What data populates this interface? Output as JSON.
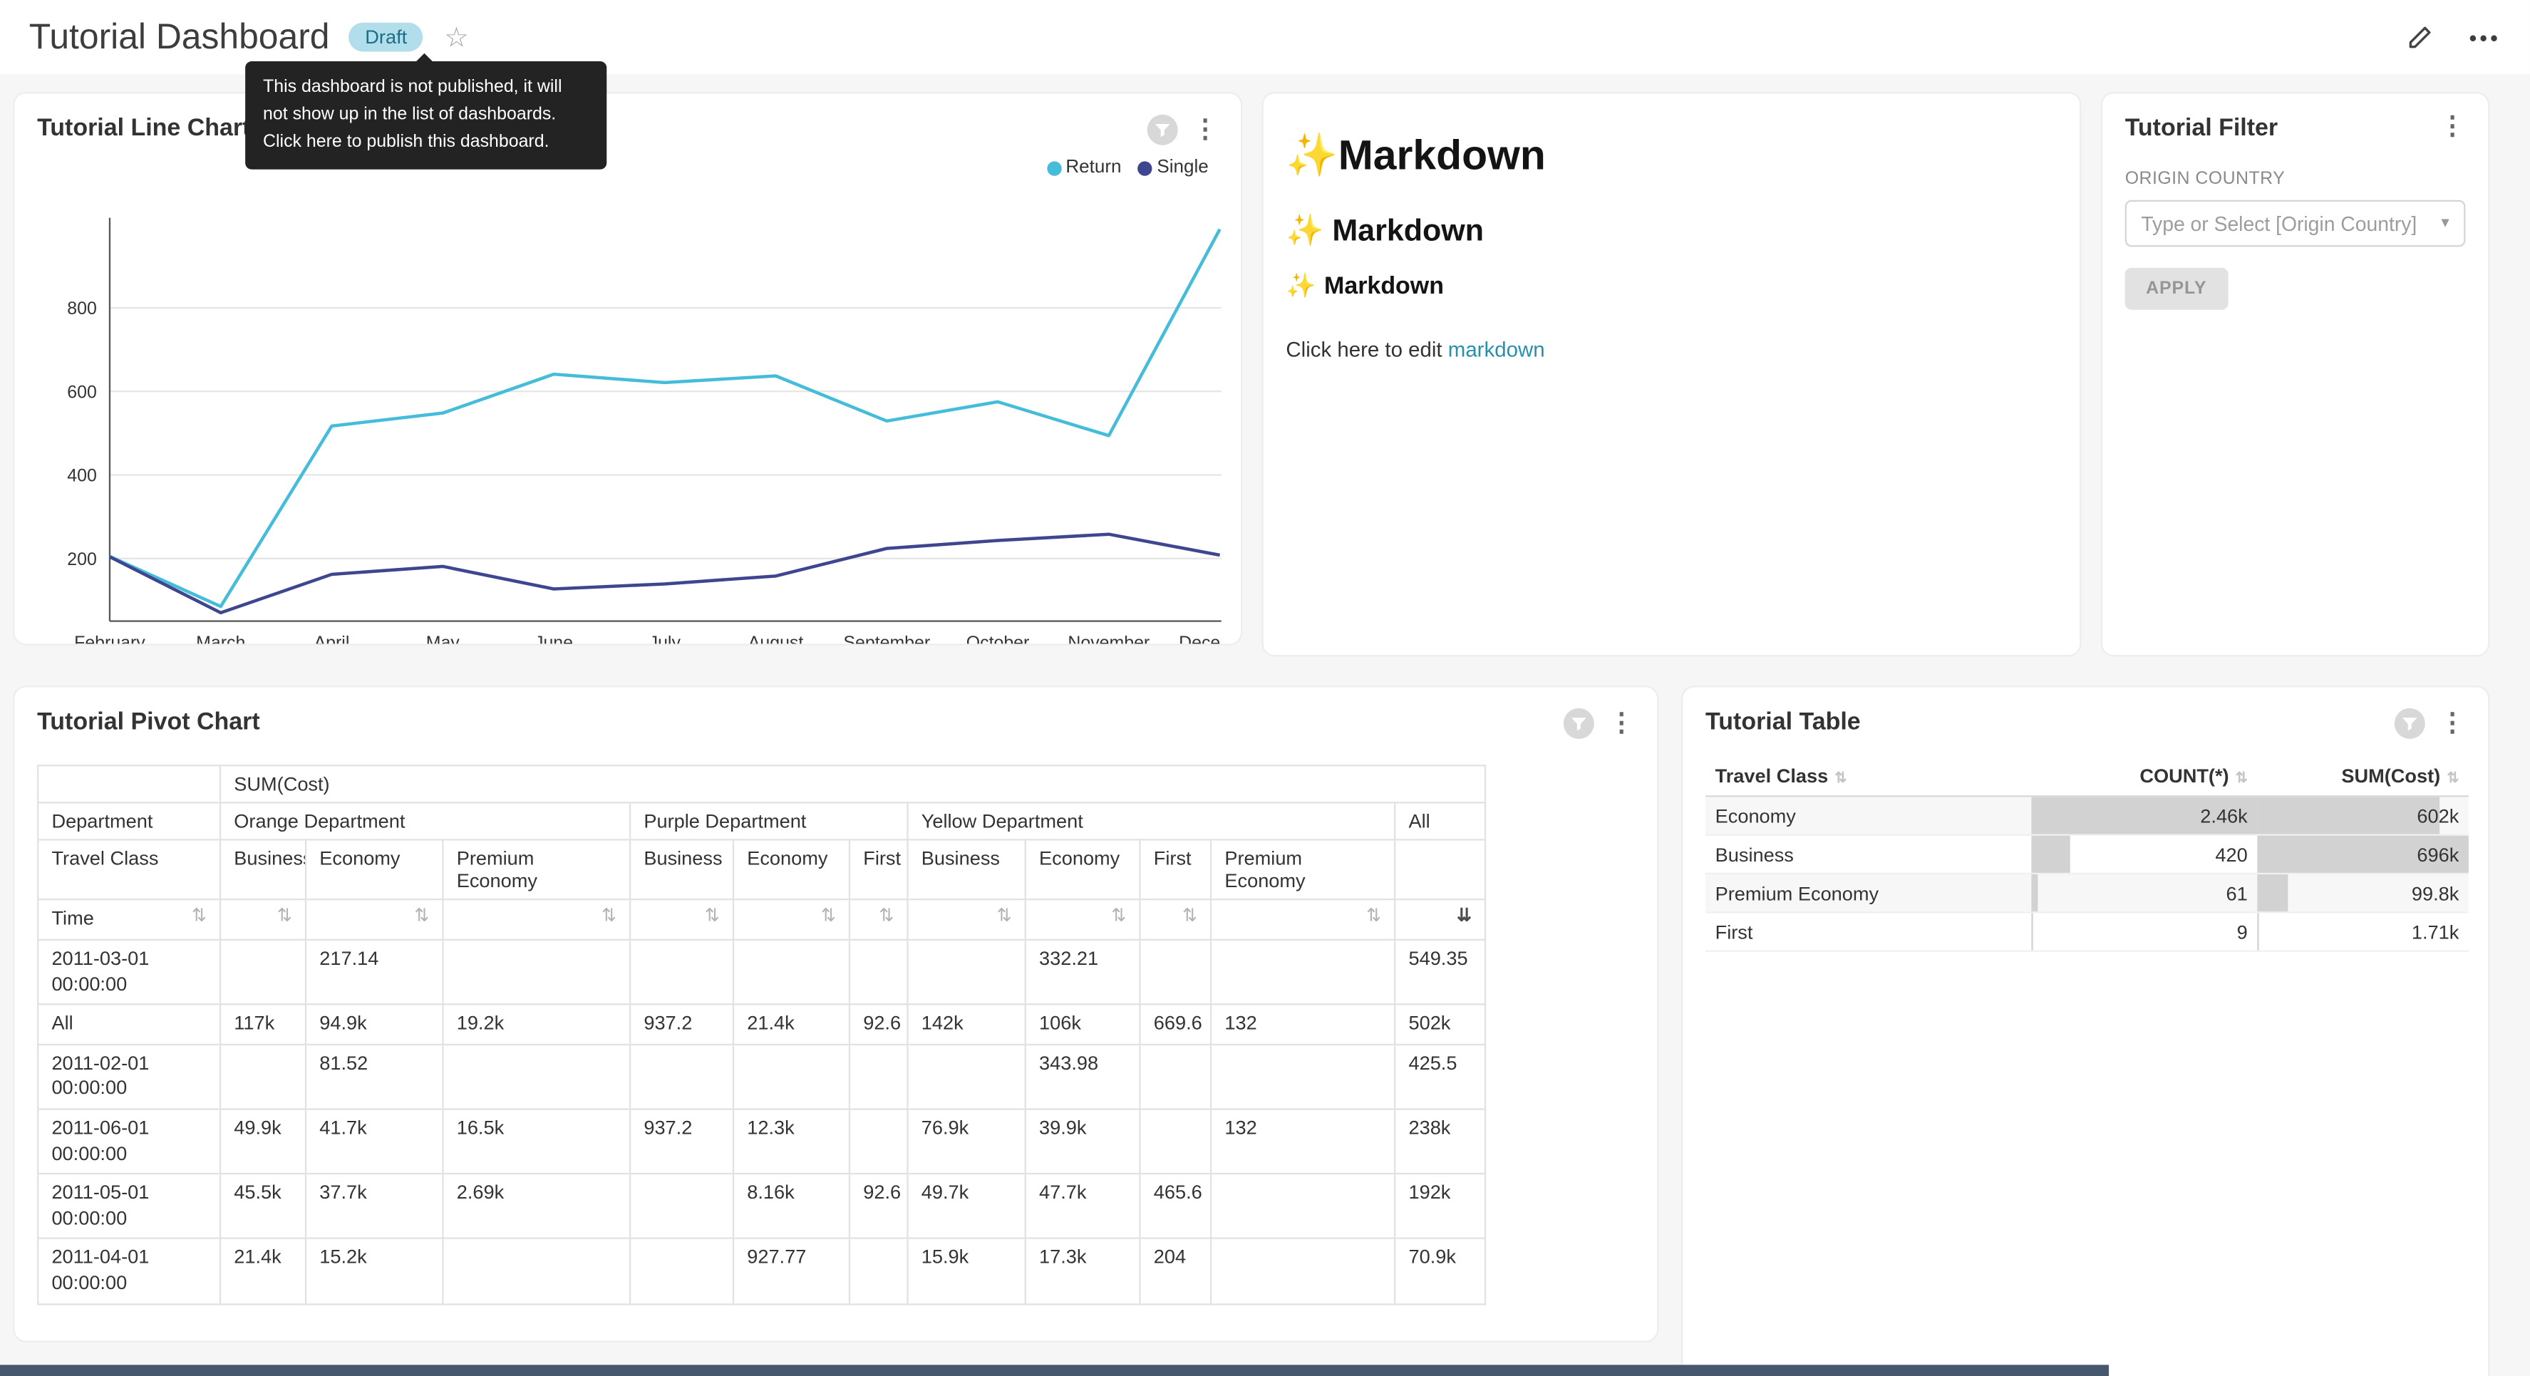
{
  "page": {
    "background": "#f6f6f6",
    "accent": "#20a7c9",
    "bottom_bar_color": "#47586e"
  },
  "header": {
    "title": "Tutorial Dashboard",
    "draft_badge": "Draft",
    "star_icon": "☆",
    "menu_dots": "•••",
    "tooltip": "This dashboard is not published, it will not show up in the list of dashboards. Click here to publish this dashboard."
  },
  "cards": {
    "markdown": {
      "headings": [
        {
          "sparkle": "✨",
          "text": "Markdown"
        },
        {
          "sparkle": "✨",
          "text": "Markdown"
        },
        {
          "sparkle": "✨",
          "text": "Markdown"
        }
      ],
      "edit_text": "Click here to edit ",
      "edit_link": "markdown"
    },
    "filter": {
      "title": "Tutorial Filter",
      "field_label": "ORIGIN COUNTRY",
      "select_placeholder": "Type or Select [Origin Country]",
      "apply_label": "APPLY"
    }
  },
  "chart_data": [
    {
      "type": "line",
      "title": "Tutorial Line Chart",
      "x": [
        "February",
        "March",
        "April",
        "May",
        "June",
        "July",
        "August",
        "September",
        "October",
        "November",
        "December"
      ],
      "series": [
        {
          "name": "Return",
          "color": "#45bcd9",
          "values": [
            205,
            85,
            517,
            548,
            641,
            621,
            637,
            529,
            575,
            494,
            988
          ]
        },
        {
          "name": "Single",
          "color": "#3d468f",
          "values": [
            204,
            70,
            162,
            181,
            127,
            139,
            158,
            224,
            243,
            258,
            208
          ]
        }
      ],
      "ylim": [
        50,
        1000
      ],
      "yticks": [
        200,
        400,
        600,
        800
      ],
      "grid": true,
      "legend_position": "top-right"
    },
    {
      "type": "table",
      "variant": "pivot",
      "title": "Tutorial Pivot Chart",
      "measure_label": "SUM(Cost)",
      "col_dims": [
        "Department",
        "Travel Class"
      ],
      "row_dim": "Time",
      "groups": [
        {
          "label": "Orange Department",
          "cols": [
            "Business",
            "Economy",
            "Premium Economy"
          ]
        },
        {
          "label": "Purple Department",
          "cols": [
            "Business",
            "Economy",
            "First"
          ]
        },
        {
          "label": "Yellow Department",
          "cols": [
            "Business",
            "Economy",
            "First",
            "Premium Economy"
          ]
        }
      ],
      "all_label": "All",
      "rows": [
        {
          "label": "2011-03-01 00:00:00",
          "values": [
            "",
            "217.14",
            "",
            "",
            "",
            "",
            "",
            "332.21",
            "",
            "",
            "549.35"
          ]
        },
        {
          "label": "All",
          "values": [
            "117k",
            "94.9k",
            "19.2k",
            "937.2",
            "21.4k",
            "92.6",
            "142k",
            "106k",
            "669.6",
            "132",
            "502k"
          ]
        },
        {
          "label": "2011-02-01 00:00:00",
          "values": [
            "",
            "81.52",
            "",
            "",
            "",
            "",
            "",
            "343.98",
            "",
            "",
            "425.5"
          ]
        },
        {
          "label": "2011-06-01 00:00:00",
          "values": [
            "49.9k",
            "41.7k",
            "16.5k",
            "937.2",
            "12.3k",
            "",
            "76.9k",
            "39.9k",
            "",
            "132",
            "238k"
          ]
        },
        {
          "label": "2011-05-01 00:00:00",
          "values": [
            "45.5k",
            "37.7k",
            "2.69k",
            "",
            "8.16k",
            "92.6",
            "49.7k",
            "47.7k",
            "465.6",
            "",
            "192k"
          ]
        },
        {
          "label": "2011-04-01 00:00:00",
          "values": [
            "21.4k",
            "15.2k",
            "",
            "",
            "927.77",
            "",
            "15.9k",
            "17.3k",
            "204",
            "",
            "70.9k"
          ]
        }
      ]
    },
    {
      "type": "table",
      "title": "Tutorial Table",
      "columns": [
        "Travel Class",
        "COUNT(*)",
        "SUM(Cost)"
      ],
      "rows": [
        {
          "travel_class": "Economy",
          "count": "2.46k",
          "count_bar_pct": 100,
          "sum": "602k",
          "sum_bar_pct": 86.5
        },
        {
          "travel_class": "Business",
          "count": "420",
          "count_bar_pct": 17,
          "sum": "696k",
          "sum_bar_pct": 100
        },
        {
          "travel_class": "Premium Economy",
          "count": "61",
          "count_bar_pct": 2.5,
          "sum": "99.8k",
          "sum_bar_pct": 14.3
        },
        {
          "travel_class": "First",
          "count": "9",
          "count_bar_pct": 0.4,
          "sum": "1.71k",
          "sum_bar_pct": 0.3
        }
      ]
    }
  ]
}
